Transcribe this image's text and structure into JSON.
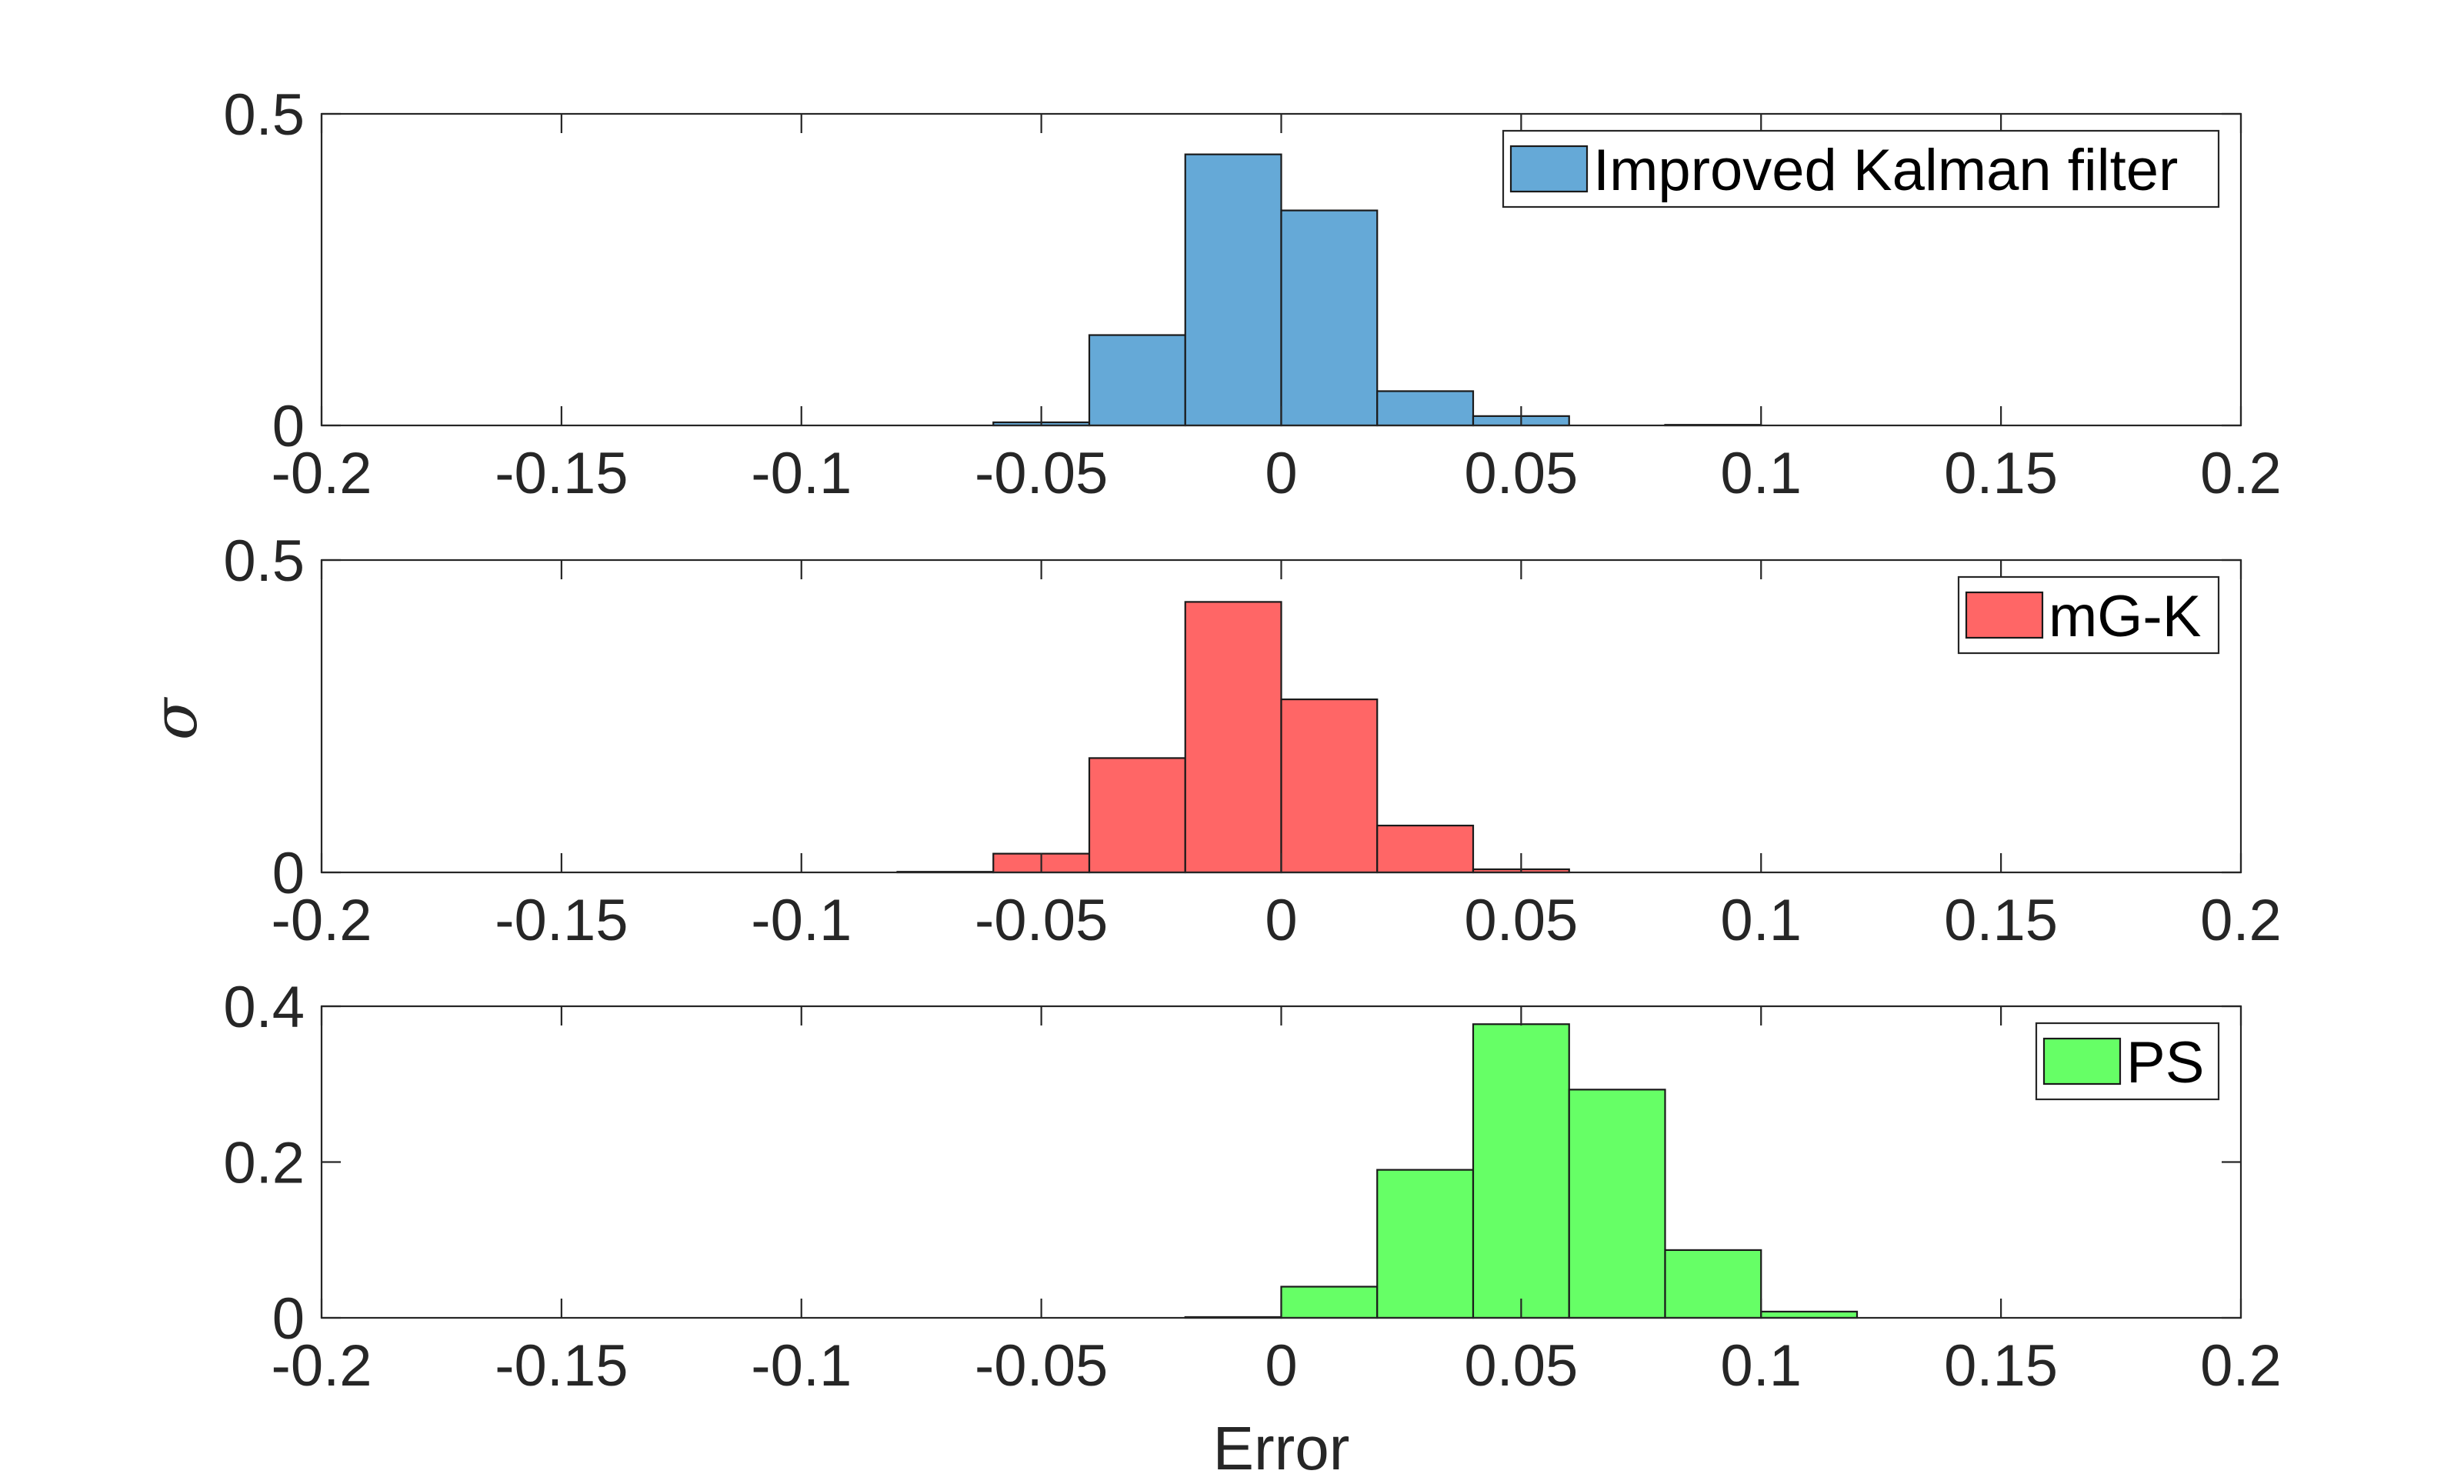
{
  "chart_data": [
    {
      "type": "bar",
      "subtype": "histogram",
      "legend": "Improved Kalman filter",
      "color": "#65A9D7",
      "edge_color": "#1a1a1a",
      "legend_position": "top-right",
      "bin_edges": [
        -0.2,
        -0.18,
        -0.16,
        -0.14,
        -0.12,
        -0.1,
        -0.08,
        -0.06,
        -0.04,
        -0.02,
        0,
        0.02,
        0.04,
        0.06,
        0.08,
        0.1,
        0.12,
        0.14,
        0.16,
        0.18,
        0.2
      ],
      "values": [
        0,
        0,
        0,
        0,
        0,
        0,
        0,
        0.005,
        0.145,
        0.435,
        0.345,
        0.055,
        0.015,
        0,
        0.001,
        0,
        0,
        0,
        0,
        0
      ],
      "xlim": [
        -0.2,
        0.2
      ],
      "ylim": [
        0,
        0.5
      ],
      "xticks": [
        "-0.2",
        "-0.15",
        "-0.1",
        "-0.05",
        "0",
        "0.05",
        "0.1",
        "0.15",
        "0.2"
      ],
      "xtick_values": [
        -0.2,
        -0.15,
        -0.1,
        -0.05,
        0,
        0.05,
        0.1,
        0.15,
        0.2
      ],
      "yticks": [
        "0",
        "0.5"
      ],
      "ytick_values": [
        0,
        0.5
      ]
    },
    {
      "type": "bar",
      "subtype": "histogram",
      "legend": "mG-K",
      "color": "#FF6666",
      "edge_color": "#1a1a1a",
      "legend_position": "top-right",
      "bin_edges": [
        -0.2,
        -0.18,
        -0.16,
        -0.14,
        -0.12,
        -0.1,
        -0.08,
        -0.06,
        -0.04,
        -0.02,
        0,
        0.02,
        0.04,
        0.06,
        0.08,
        0.1,
        0.12,
        0.14,
        0.16,
        0.18,
        0.2
      ],
      "values": [
        0,
        0,
        0,
        0,
        0,
        0,
        0.001,
        0.03,
        0.183,
        0.433,
        0.277,
        0.075,
        0.005,
        0,
        0,
        0,
        0,
        0,
        0,
        0
      ],
      "xlim": [
        -0.2,
        0.2
      ],
      "ylim": [
        0,
        0.5
      ],
      "xticks": [
        "-0.2",
        "-0.15",
        "-0.1",
        "-0.05",
        "0",
        "0.05",
        "0.1",
        "0.15",
        "0.2"
      ],
      "xtick_values": [
        -0.2,
        -0.15,
        -0.1,
        -0.05,
        0,
        0.05,
        0.1,
        0.15,
        0.2
      ],
      "yticks": [
        "0",
        "0.5"
      ],
      "ytick_values": [
        0,
        0.5
      ]
    },
    {
      "type": "bar",
      "subtype": "histogram",
      "legend": "PS",
      "color": "#66FF66",
      "edge_color": "#1a1a1a",
      "legend_position": "top-right",
      "bin_edges": [
        -0.2,
        -0.18,
        -0.16,
        -0.14,
        -0.12,
        -0.1,
        -0.08,
        -0.06,
        -0.04,
        -0.02,
        0,
        0.02,
        0.04,
        0.06,
        0.08,
        0.1,
        0.12,
        0.14,
        0.16,
        0.18,
        0.2
      ],
      "values": [
        0,
        0,
        0,
        0,
        0,
        0,
        0,
        0,
        0,
        0.001,
        0.04,
        0.19,
        0.377,
        0.293,
        0.087,
        0.008,
        0,
        0,
        0,
        0
      ],
      "xlim": [
        -0.2,
        0.2
      ],
      "ylim": [
        0,
        0.4
      ],
      "xticks": [
        "-0.2",
        "-0.15",
        "-0.1",
        "-0.05",
        "0",
        "0.05",
        "0.1",
        "0.15",
        "0.2"
      ],
      "xtick_values": [
        -0.2,
        -0.15,
        -0.1,
        -0.05,
        0,
        0.05,
        0.1,
        0.15,
        0.2
      ],
      "yticks": [
        "0",
        "0.2",
        "0.4"
      ],
      "ytick_values": [
        0,
        0.2,
        0.4
      ],
      "xlabel": "Error"
    }
  ],
  "ylabel": "σ"
}
